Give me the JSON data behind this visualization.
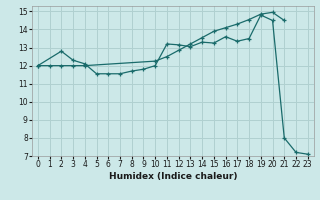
{
  "xlabel": "Humidex (Indice chaleur)",
  "bg_color": "#cce8e8",
  "grid_color": "#b0d0d0",
  "line_color": "#1a6b6b",
  "xlim": [
    -0.5,
    23.5
  ],
  "ylim": [
    7,
    15.3
  ],
  "xticks": [
    0,
    1,
    2,
    3,
    4,
    5,
    6,
    7,
    8,
    9,
    10,
    11,
    12,
    13,
    14,
    15,
    16,
    17,
    18,
    19,
    20,
    21,
    22,
    23
  ],
  "yticks": [
    7,
    8,
    9,
    10,
    11,
    12,
    13,
    14,
    15
  ],
  "line1_x": [
    0,
    1,
    2,
    3,
    4,
    10,
    11,
    12,
    13,
    14,
    15,
    16,
    17,
    18,
    19,
    20,
    21
  ],
  "line1_y": [
    12.0,
    12.0,
    12.0,
    12.0,
    12.0,
    12.25,
    12.5,
    12.85,
    13.2,
    13.55,
    13.9,
    14.1,
    14.3,
    14.55,
    14.85,
    14.95,
    14.5
  ],
  "line2_x": [
    0,
    2,
    3,
    4,
    5,
    6,
    7,
    8,
    9,
    10,
    11,
    12,
    13,
    14,
    15,
    16,
    17,
    18,
    19,
    20,
    21,
    22,
    23
  ],
  "line2_y": [
    12.0,
    12.8,
    12.3,
    12.1,
    11.55,
    11.55,
    11.55,
    11.7,
    11.8,
    12.0,
    13.2,
    13.15,
    13.05,
    13.3,
    13.25,
    13.6,
    13.35,
    13.5,
    14.8,
    14.5,
    8.0,
    7.2,
    7.1
  ]
}
